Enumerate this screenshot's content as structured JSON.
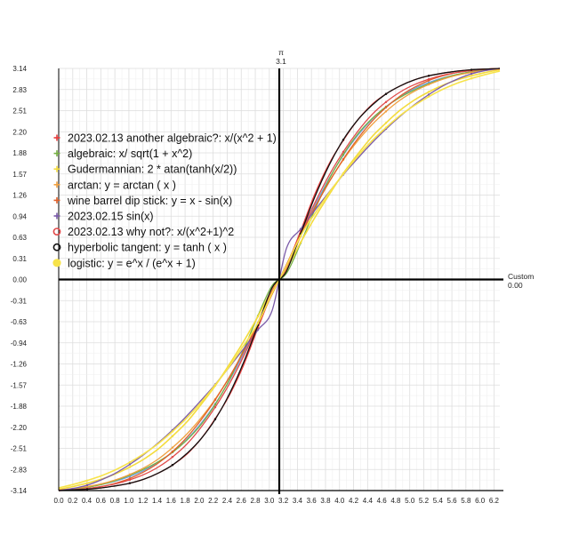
{
  "chart_data": {
    "type": "line",
    "xlim": [
      0,
      6.2832
    ],
    "ylim": [
      -3.14,
      3.14
    ],
    "x_ticks": [
      "0.0",
      "0.2",
      "0.4",
      "0.6",
      "0.8",
      "1.0",
      "1.2",
      "1.4",
      "1.6",
      "1.8",
      "2.0",
      "2.2",
      "2.4",
      "2.6",
      "2.8",
      "3.0",
      "3.2",
      "3.4",
      "3.6",
      "3.8",
      "4.0",
      "4.2",
      "4.4",
      "4.6",
      "4.8",
      "5.0",
      "5.2",
      "5.4",
      "5.6",
      "5.8",
      "6.0",
      "6.2"
    ],
    "y_ticks": [
      "3.14",
      "2.83",
      "2.51",
      "2.20",
      "1.88",
      "1.57",
      "1.26",
      "0.94",
      "0.63",
      "0.31",
      "0.00",
      "-0.31",
      "-0.63",
      "-0.94",
      "-1.26",
      "-1.57",
      "-1.88",
      "-2.20",
      "-2.51",
      "-2.83",
      "-3.14"
    ],
    "y_axis_label": "π",
    "y_axis_value": "3.1",
    "x_axis_label": "Custom",
    "x_axis_value": "0.00",
    "grid": true,
    "legend_position": "upper-left",
    "series": [
      {
        "name": "2023.02.13 another algebraic?:  x/(x^2 + 1)",
        "color": "#e83a3a",
        "marker": "plus",
        "x_center": 3.1416,
        "y_samples": [
          -3.14,
          -3.13,
          -3.12,
          -3.1,
          -3.07,
          -3.03,
          -2.97,
          -2.88,
          -2.76,
          -2.6,
          -2.37,
          -2.07,
          -1.72,
          -1.27,
          -0.72,
          -0.2,
          0.2,
          0.72,
          1.27,
          1.72,
          2.07,
          2.37,
          2.6,
          2.76,
          2.88,
          2.97,
          3.03,
          3.07,
          3.1,
          3.12,
          3.13,
          3.14
        ]
      },
      {
        "name": "algebraic:  x/ sqrt(1 + x^2)",
        "color": "#76b043",
        "marker": "plus",
        "x_center": 3.1416,
        "y_samples": [
          -3.14,
          -3.12,
          -3.09,
          -3.05,
          -2.99,
          -2.91,
          -2.82,
          -2.71,
          -2.57,
          -2.39,
          -2.16,
          -1.86,
          -1.49,
          -1.04,
          -0.54,
          -0.09,
          0.09,
          0.54,
          1.04,
          1.49,
          1.86,
          2.16,
          2.39,
          2.57,
          2.71,
          2.82,
          2.91,
          2.99,
          3.05,
          3.09,
          3.12,
          3.14
        ]
      },
      {
        "name": "Gudermannian:  2 * atan(tanh(x/2))",
        "color": "#f4dc3c",
        "marker": "plus",
        "x_center": 3.1416,
        "y_samples": [
          -3.12,
          -3.08,
          -3.03,
          -2.97,
          -2.89,
          -2.79,
          -2.67,
          -2.52,
          -2.33,
          -2.12,
          -1.86,
          -1.58,
          -1.26,
          -0.92,
          -0.55,
          -0.15,
          0.15,
          0.55,
          0.92,
          1.26,
          1.58,
          1.86,
          2.12,
          2.33,
          2.52,
          2.67,
          2.79,
          2.89,
          2.97,
          3.03,
          3.08,
          3.12
        ]
      },
      {
        "name": "arctan:  y = arctan ( x )",
        "color": "#f0a040",
        "marker": "plus",
        "x_center": 3.1416,
        "y_samples": [
          -3.13,
          -3.11,
          -3.08,
          -3.04,
          -2.98,
          -2.9,
          -2.8,
          -2.67,
          -2.5,
          -2.3,
          -2.06,
          -1.78,
          -1.45,
          -1.07,
          -0.64,
          -0.15,
          0.15,
          0.64,
          1.07,
          1.45,
          1.78,
          2.06,
          2.3,
          2.5,
          2.67,
          2.8,
          2.9,
          2.98,
          3.04,
          3.08,
          3.11,
          3.13
        ]
      },
      {
        "name": "wine barrel dip stick:  y = x - sin(x)",
        "color": "#e0602a",
        "marker": "plus",
        "x_center": 3.1416,
        "y_samples": [
          -3.14,
          -3.13,
          -3.11,
          -3.08,
          -3.03,
          -2.96,
          -2.86,
          -2.73,
          -2.56,
          -2.35,
          -2.09,
          -1.79,
          -1.45,
          -1.07,
          -0.66,
          -0.22,
          0.22,
          0.66,
          1.07,
          1.45,
          1.79,
          2.09,
          2.35,
          2.56,
          2.73,
          2.86,
          2.96,
          3.03,
          3.08,
          3.11,
          3.13,
          3.14
        ]
      },
      {
        "name": "2023.02.15 sin(x)",
        "color": "#7a5aa8",
        "marker": "plus",
        "x_center": 3.1416,
        "y_samples": [
          -3.14,
          -3.11,
          -3.06,
          -2.98,
          -2.88,
          -2.75,
          -2.6,
          -2.43,
          -2.24,
          -2.03,
          -1.8,
          -1.56,
          -1.3,
          -1.03,
          -0.75,
          -0.46,
          0.46,
          0.75,
          1.03,
          1.3,
          1.56,
          1.8,
          2.03,
          2.24,
          2.43,
          2.6,
          2.75,
          2.88,
          2.98,
          3.06,
          3.11,
          3.14
        ]
      },
      {
        "name": "2023.02.13 why not?:  x/(x^2+1)^2",
        "color": "#e04a4a",
        "marker": "circle",
        "x_center": 3.1416,
        "y_samples": [
          -3.14,
          -3.13,
          -3.11,
          -3.08,
          -3.04,
          -2.98,
          -2.9,
          -2.79,
          -2.64,
          -2.45,
          -2.2,
          -1.9,
          -1.55,
          -1.14,
          -0.68,
          -0.18,
          0.18,
          0.68,
          1.14,
          1.55,
          1.9,
          2.2,
          2.45,
          2.64,
          2.79,
          2.9,
          2.98,
          3.04,
          3.08,
          3.11,
          3.13,
          3.14
        ]
      },
      {
        "name": "hyperbolic tangent:  y = tanh ( x )",
        "color": "#111111",
        "marker": "circle",
        "x_center": 3.1416,
        "y_samples": [
          -3.14,
          -3.13,
          -3.12,
          -3.1,
          -3.07,
          -3.03,
          -2.97,
          -2.88,
          -2.76,
          -2.59,
          -2.37,
          -2.08,
          -1.7,
          -1.23,
          -0.68,
          -0.12,
          0.12,
          0.68,
          1.23,
          1.7,
          2.08,
          2.37,
          2.59,
          2.76,
          2.88,
          2.97,
          3.03,
          3.07,
          3.1,
          3.12,
          3.13,
          3.14
        ]
      },
      {
        "name": "logistic:  y = e^x / (e^x + 1)",
        "color": "#f7e34a",
        "marker": "blob",
        "x_center": 3.1416,
        "y_samples": [
          -3.1,
          -3.05,
          -2.99,
          -2.92,
          -2.83,
          -2.72,
          -2.59,
          -2.44,
          -2.26,
          -2.06,
          -1.83,
          -1.57,
          -1.29,
          -0.98,
          -0.65,
          -0.2,
          0.2,
          0.65,
          0.98,
          1.29,
          1.57,
          1.83,
          2.06,
          2.26,
          2.44,
          2.59,
          2.72,
          2.83,
          2.92,
          2.99,
          3.05,
          3.1
        ]
      }
    ],
    "extra_series": [
      {
        "name": "",
        "color": "#6fa0e0",
        "y_samples": [
          -3.14,
          -3.12,
          -3.09,
          -3.05,
          -3.0,
          -2.93,
          -2.84,
          -2.72,
          -2.57,
          -2.38,
          -2.14,
          -1.85,
          -1.5,
          -1.1,
          -0.65,
          -0.18,
          0.18,
          0.65,
          1.1,
          1.5,
          1.85,
          2.14,
          2.38,
          2.57,
          2.72,
          2.84,
          2.93,
          3.0,
          3.05,
          3.09,
          3.12,
          3.14
        ]
      }
    ]
  }
}
